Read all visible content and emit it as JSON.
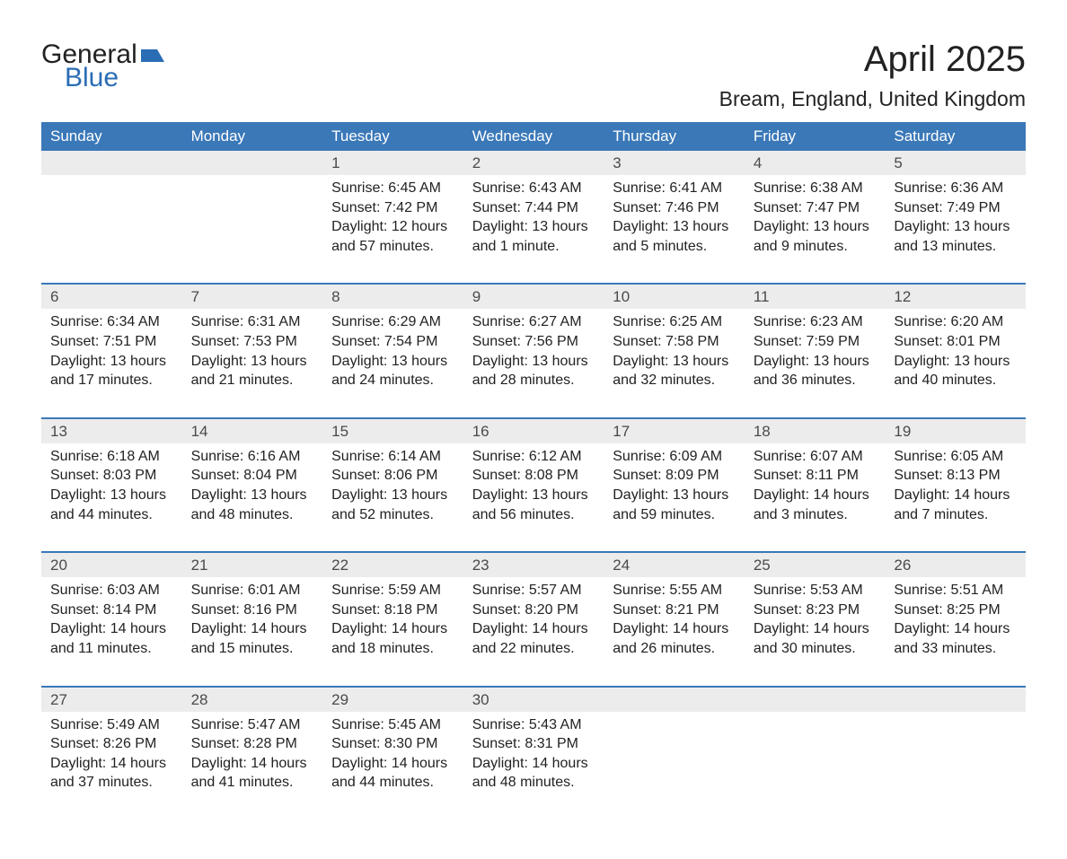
{
  "logo": {
    "text_main": "General",
    "text_sub": "Blue",
    "icon_color": "#2a6db5",
    "text_main_color": "#222222",
    "text_sub_color": "#2a6db5"
  },
  "title": {
    "month": "April 2025",
    "location": "Bream, England, United Kingdom"
  },
  "styling": {
    "header_bg": "#3a78b8",
    "header_fg": "#ffffff",
    "daynum_bg": "#ececec",
    "daynum_fg": "#4a4a4a",
    "body_fg": "#222222",
    "week_divider": "#3a78b8",
    "page_bg": "#ffffff",
    "font_family": "Segoe UI",
    "title_fontsize": 40,
    "location_fontsize": 23,
    "header_fontsize": 17,
    "cell_fontsize": 16
  },
  "calendar": {
    "day_headers": [
      "Sunday",
      "Monday",
      "Tuesday",
      "Wednesday",
      "Thursday",
      "Friday",
      "Saturday"
    ],
    "line_labels": {
      "sunrise": "Sunrise:",
      "sunset": "Sunset:",
      "daylight": "Daylight:"
    },
    "weeks": [
      [
        null,
        null,
        {
          "n": "1",
          "sunrise": "6:45 AM",
          "sunset": "7:42 PM",
          "daylight": "12 hours and 57 minutes."
        },
        {
          "n": "2",
          "sunrise": "6:43 AM",
          "sunset": "7:44 PM",
          "daylight": "13 hours and 1 minute."
        },
        {
          "n": "3",
          "sunrise": "6:41 AM",
          "sunset": "7:46 PM",
          "daylight": "13 hours and 5 minutes."
        },
        {
          "n": "4",
          "sunrise": "6:38 AM",
          "sunset": "7:47 PM",
          "daylight": "13 hours and 9 minutes."
        },
        {
          "n": "5",
          "sunrise": "6:36 AM",
          "sunset": "7:49 PM",
          "daylight": "13 hours and 13 minutes."
        }
      ],
      [
        {
          "n": "6",
          "sunrise": "6:34 AM",
          "sunset": "7:51 PM",
          "daylight": "13 hours and 17 minutes."
        },
        {
          "n": "7",
          "sunrise": "6:31 AM",
          "sunset": "7:53 PM",
          "daylight": "13 hours and 21 minutes."
        },
        {
          "n": "8",
          "sunrise": "6:29 AM",
          "sunset": "7:54 PM",
          "daylight": "13 hours and 24 minutes."
        },
        {
          "n": "9",
          "sunrise": "6:27 AM",
          "sunset": "7:56 PM",
          "daylight": "13 hours and 28 minutes."
        },
        {
          "n": "10",
          "sunrise": "6:25 AM",
          "sunset": "7:58 PM",
          "daylight": "13 hours and 32 minutes."
        },
        {
          "n": "11",
          "sunrise": "6:23 AM",
          "sunset": "7:59 PM",
          "daylight": "13 hours and 36 minutes."
        },
        {
          "n": "12",
          "sunrise": "6:20 AM",
          "sunset": "8:01 PM",
          "daylight": "13 hours and 40 minutes."
        }
      ],
      [
        {
          "n": "13",
          "sunrise": "6:18 AM",
          "sunset": "8:03 PM",
          "daylight": "13 hours and 44 minutes."
        },
        {
          "n": "14",
          "sunrise": "6:16 AM",
          "sunset": "8:04 PM",
          "daylight": "13 hours and 48 minutes."
        },
        {
          "n": "15",
          "sunrise": "6:14 AM",
          "sunset": "8:06 PM",
          "daylight": "13 hours and 52 minutes."
        },
        {
          "n": "16",
          "sunrise": "6:12 AM",
          "sunset": "8:08 PM",
          "daylight": "13 hours and 56 minutes."
        },
        {
          "n": "17",
          "sunrise": "6:09 AM",
          "sunset": "8:09 PM",
          "daylight": "13 hours and 59 minutes."
        },
        {
          "n": "18",
          "sunrise": "6:07 AM",
          "sunset": "8:11 PM",
          "daylight": "14 hours and 3 minutes."
        },
        {
          "n": "19",
          "sunrise": "6:05 AM",
          "sunset": "8:13 PM",
          "daylight": "14 hours and 7 minutes."
        }
      ],
      [
        {
          "n": "20",
          "sunrise": "6:03 AM",
          "sunset": "8:14 PM",
          "daylight": "14 hours and 11 minutes."
        },
        {
          "n": "21",
          "sunrise": "6:01 AM",
          "sunset": "8:16 PM",
          "daylight": "14 hours and 15 minutes."
        },
        {
          "n": "22",
          "sunrise": "5:59 AM",
          "sunset": "8:18 PM",
          "daylight": "14 hours and 18 minutes."
        },
        {
          "n": "23",
          "sunrise": "5:57 AM",
          "sunset": "8:20 PM",
          "daylight": "14 hours and 22 minutes."
        },
        {
          "n": "24",
          "sunrise": "5:55 AM",
          "sunset": "8:21 PM",
          "daylight": "14 hours and 26 minutes."
        },
        {
          "n": "25",
          "sunrise": "5:53 AM",
          "sunset": "8:23 PM",
          "daylight": "14 hours and 30 minutes."
        },
        {
          "n": "26",
          "sunrise": "5:51 AM",
          "sunset": "8:25 PM",
          "daylight": "14 hours and 33 minutes."
        }
      ],
      [
        {
          "n": "27",
          "sunrise": "5:49 AM",
          "sunset": "8:26 PM",
          "daylight": "14 hours and 37 minutes."
        },
        {
          "n": "28",
          "sunrise": "5:47 AM",
          "sunset": "8:28 PM",
          "daylight": "14 hours and 41 minutes."
        },
        {
          "n": "29",
          "sunrise": "5:45 AM",
          "sunset": "8:30 PM",
          "daylight": "14 hours and 44 minutes."
        },
        {
          "n": "30",
          "sunrise": "5:43 AM",
          "sunset": "8:31 PM",
          "daylight": "14 hours and 48 minutes."
        },
        null,
        null,
        null
      ]
    ]
  }
}
